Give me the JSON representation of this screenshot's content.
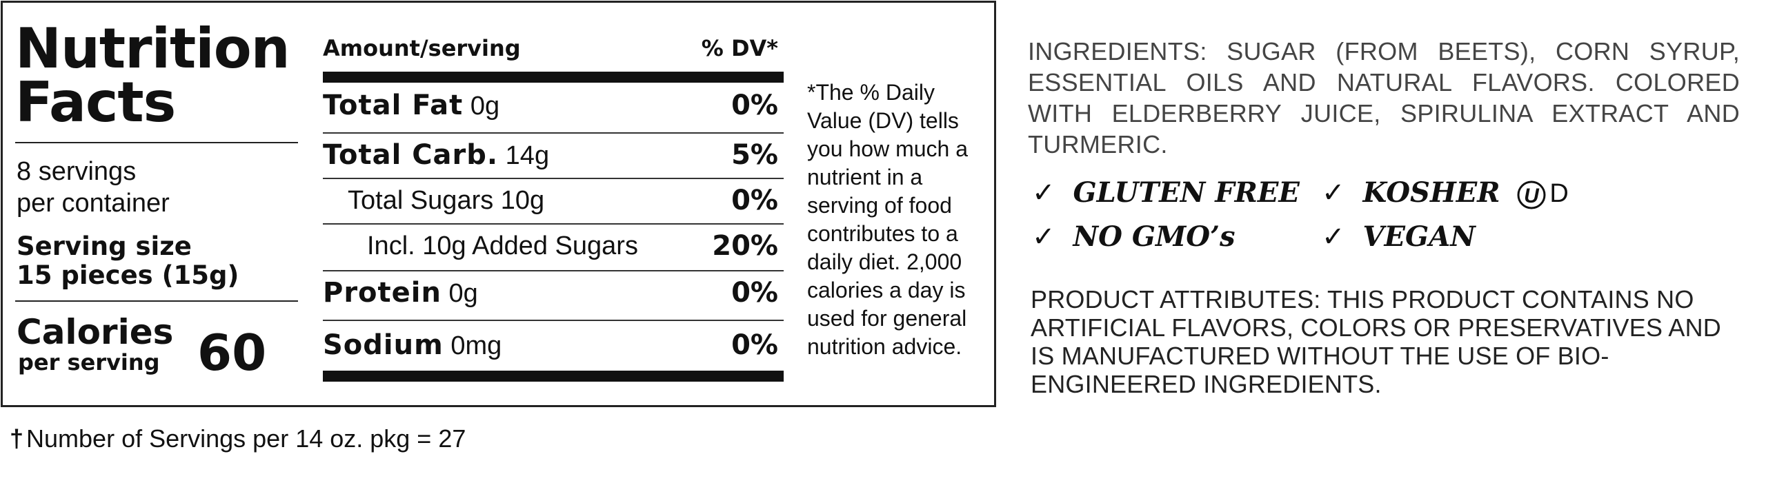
{
  "nutrition": {
    "title_line1": "Nutrition",
    "title_line2": "Facts",
    "servings_line1": "8 servings",
    "servings_line2": "per container",
    "serving_size_label": "Serving size",
    "serving_size_value": "15 pieces (15g)",
    "calories_label": "Calories",
    "calories_sub": "per serving",
    "calories_value": "60",
    "header_amount": "Amount/serving",
    "header_dv": "% DV*",
    "rows": [
      {
        "name": "Total Fat",
        "amount": "0g",
        "dv": "0%"
      },
      {
        "name": "Total Carb.",
        "amount": "14g",
        "dv": "5%"
      },
      {
        "name": "Total Sugars 10g",
        "amount": "",
        "dv": "0%"
      },
      {
        "name": "Incl. 10g Added Sugars",
        "amount": "",
        "dv": "20%"
      },
      {
        "name": "Protein",
        "amount": "0g",
        "dv": "0%"
      },
      {
        "name": "Sodium",
        "amount": "0mg",
        "dv": "0%"
      }
    ],
    "footnote": "*The % Daily Value (DV) tells you how much a nutrient in a serving of food contributes to a daily diet. 2,000 calories a day is used for general nutrition advice."
  },
  "package_note": {
    "dagger": "†",
    "text": "Number of Servings per 14 oz. pkg = 27"
  },
  "ingredients": "INGREDIENTS: SUGAR (FROM BEETS), CORN SYRUP, ESSENTIAL OILS AND NATURAL FLAVORS. COLORED WITH ELDERBERRY JUICE, SPIRULINA EXTRACT AND TURMERIC.",
  "claims": {
    "check_mark": "✓",
    "gluten_free": "GLUTEN FREE",
    "kosher": "KOSHER",
    "kosher_symbol": "U",
    "kosher_suffix": "D",
    "no_gmo": "NO GMO’s",
    "vegan": "VEGAN"
  },
  "attributes": "PRODUCT ATTRIBUTES: THIS PRODUCT CONTAINS NO ARTIFICIAL FLAVORS, COLORS OR PRESERVATIVES AND IS MANUFACTURED WITHOUT THE USE OF BIO-ENGINEERED INGREDIENTS."
}
